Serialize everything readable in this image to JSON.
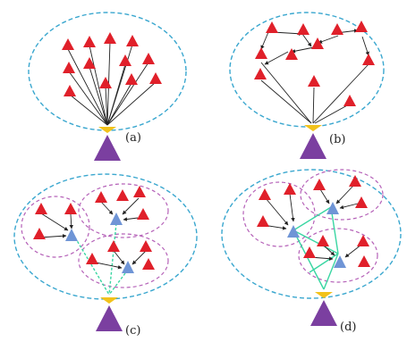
{
  "panels": [
    {
      "id": "a",
      "label": "(a)"
    },
    {
      "id": "b",
      "label": "(b)"
    },
    {
      "id": "c",
      "label": "(c)"
    },
    {
      "id": "d",
      "label": "(d)"
    }
  ],
  "colors": {
    "sensor": "#e0202a",
    "cluster_head": "#6f95d6",
    "base_station": "#7b3fa0",
    "antenna": "#f2c21b",
    "outer_boundary": "#3aa7cf",
    "cluster_boundary": "#b561b8",
    "backbone_link": "#39d6a2",
    "link": "#222222"
  },
  "icons": {
    "sensor": "red-triangle-icon",
    "cluster_head": "blue-triangle-icon",
    "base_station": "purple-triangle-icon"
  }
}
